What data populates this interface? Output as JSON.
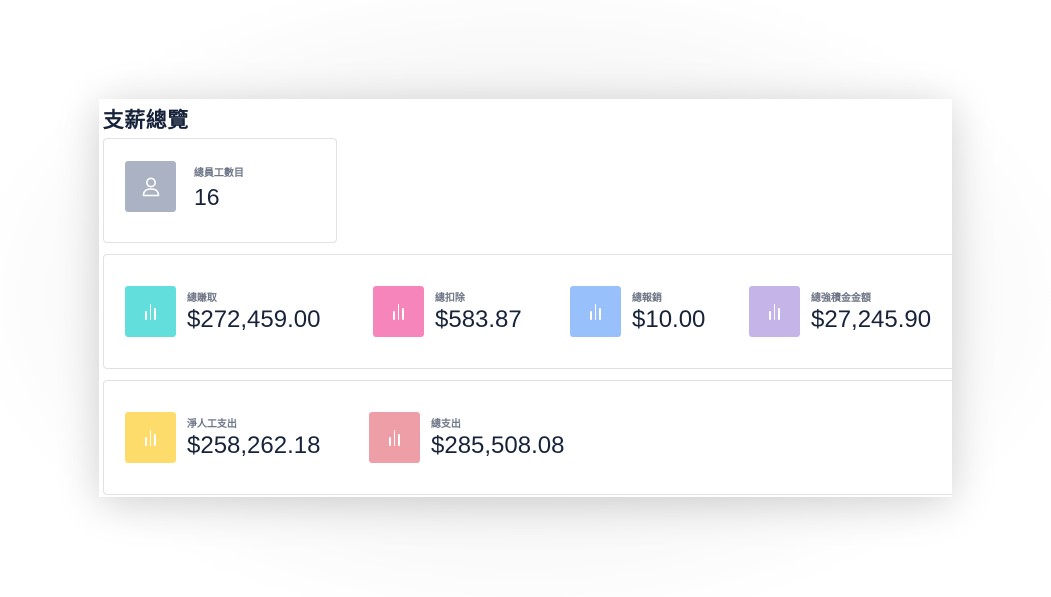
{
  "page": {
    "title": "支薪總覽"
  },
  "employees": {
    "label": "總員工數目",
    "value": "16",
    "icon": "user-icon",
    "color": "#abb2c3"
  },
  "row2": [
    {
      "label": "總賺取",
      "value": "$272,459.00",
      "icon": "bar-chart-icon",
      "color": "#62dfdc"
    },
    {
      "label": "總扣除",
      "value": "$583.87",
      "icon": "bar-chart-icon",
      "color": "#f685bc"
    },
    {
      "label": "總報銷",
      "value": "$10.00",
      "icon": "bar-chart-icon",
      "color": "#98c0fa"
    },
    {
      "label": "總強積金金額",
      "value": "$27,245.90",
      "icon": "bar-chart-icon",
      "color": "#c4b4e8"
    }
  ],
  "row3": [
    {
      "label": "淨人工支出",
      "value": "$258,262.18",
      "icon": "bar-chart-icon",
      "color": "#fddc6b"
    },
    {
      "label": "總支出",
      "value": "$285,508.08",
      "icon": "bar-chart-icon",
      "color": "#ee9ea6"
    }
  ]
}
